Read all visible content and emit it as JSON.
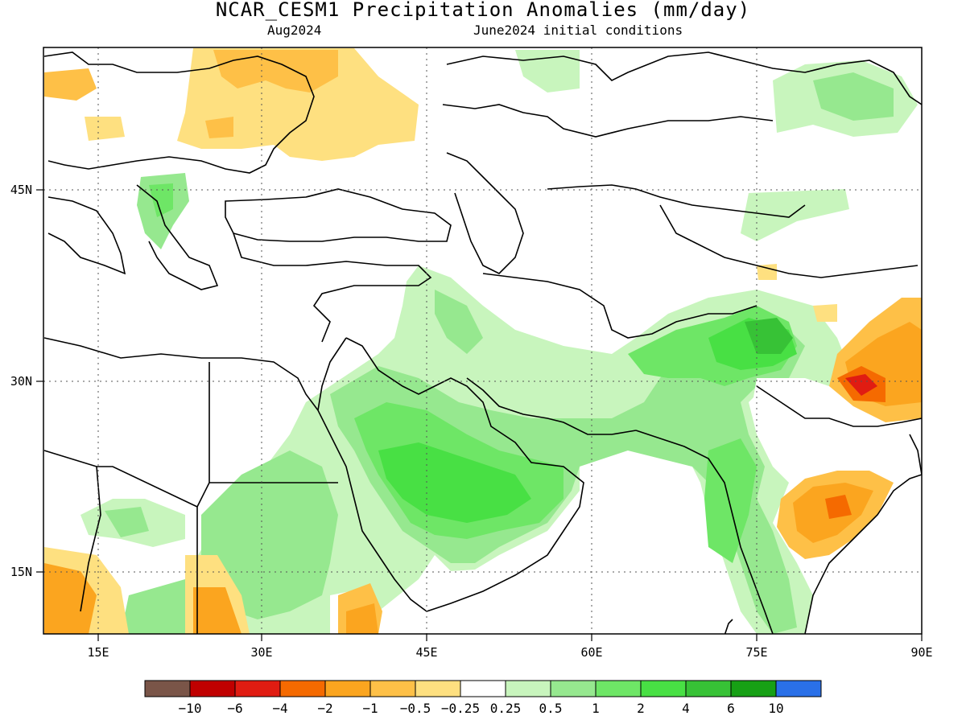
{
  "header": {
    "title": "NCAR_CESM1 Precipitation Anomalies (mm/day)",
    "valid_month": "Aug2024",
    "init": "June2024 initial conditions"
  },
  "axes": {
    "lon_labels": [
      "15E",
      "30E",
      "45E",
      "60E",
      "75E",
      "90E"
    ],
    "lat_labels": [
      "45N",
      "30N",
      "15N"
    ]
  },
  "colorbar": {
    "colors": [
      "#7a5548",
      "#c00000",
      "#e01c12",
      "#f56a00",
      "#fba51f",
      "#fec047",
      "#fee080",
      "#ffffff",
      "#c8f5bd",
      "#96e88f",
      "#6ee666",
      "#48e044",
      "#37c236",
      "#17a015",
      "#2a70e8"
    ],
    "labels": [
      "−10",
      "−6",
      "−4",
      "−2",
      "−1",
      "−0.5",
      "−0.25",
      "0.25",
      "0.5",
      "1",
      "2",
      "4",
      "6",
      "10"
    ]
  }
}
